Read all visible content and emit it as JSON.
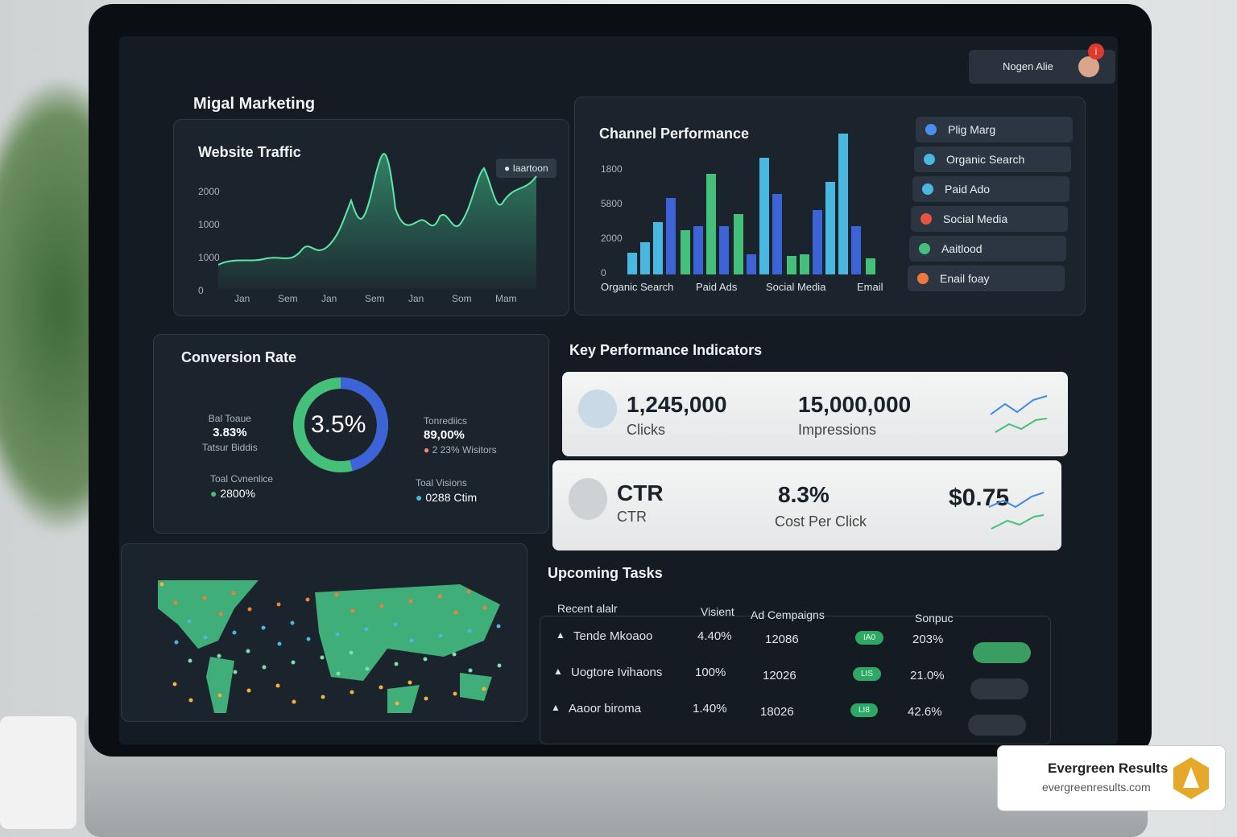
{
  "header": {
    "brand": "Migal Marketing",
    "user": "Nogen Alie",
    "notification": "i"
  },
  "website_traffic": {
    "title": "Website Traffic",
    "legend": "Iaartoon",
    "y_labels": [
      "2000",
      "1000",
      "1000",
      "0"
    ],
    "x_labels": [
      "Jan",
      "Sem",
      "Jan",
      "Sem",
      "Jan",
      "Som",
      "Mam"
    ]
  },
  "channel_performance": {
    "title": "Channel Performance",
    "y_labels": [
      "1800",
      "5800",
      "2000",
      "0"
    ],
    "x_labels": [
      "Organic Search",
      "Paid Ads",
      "Social Media",
      "Email"
    ],
    "menu": [
      "Plig Marg",
      "Organic Search",
      "Paid Ado",
      "Social Media",
      "Aaitlood",
      "Enail foay"
    ]
  },
  "conversion_rate": {
    "title": "Conversion Rate",
    "center": "3.5%",
    "left_top": [
      "Bal Toaue",
      "3.83%",
      "Tatsur Biddis"
    ],
    "left_bottom": [
      "Toal Cvnenlice",
      "2800%"
    ],
    "right_top": [
      "Tonrediics",
      "89,00%",
      "2 23% Wisitors"
    ],
    "right_bottom": [
      "Toal Visions",
      "0288 Ctim"
    ]
  },
  "kpi": {
    "title": "Key Performance Indicators",
    "card1": {
      "value1": "1,245,000",
      "label1": "Clicks",
      "value2": "15,000,000",
      "label2": "Impressions"
    },
    "card2": {
      "value1": "CTR",
      "label1": "CTR",
      "value2": "8.3%",
      "label2": "Cost Per Click",
      "value3": "$0.75"
    }
  },
  "tasks": {
    "title": "Upcoming Tasks",
    "header": [
      "Recent alalr",
      "Visient",
      "Ad Cempaigns",
      "Sonpuc"
    ],
    "rows": [
      [
        "Tende Mkoaoo",
        "4.40%",
        "12086",
        "IA0",
        "203%"
      ],
      [
        "Uogtore Ivihaons",
        "100%",
        "12026",
        "LIS",
        "21.0%"
      ],
      [
        "Aaoor biroma",
        "1.40%",
        "18026",
        "LI8",
        "42.6%"
      ]
    ]
  },
  "badge": {
    "name": "Evergreen Results",
    "url": "evergreenresults.com"
  }
}
